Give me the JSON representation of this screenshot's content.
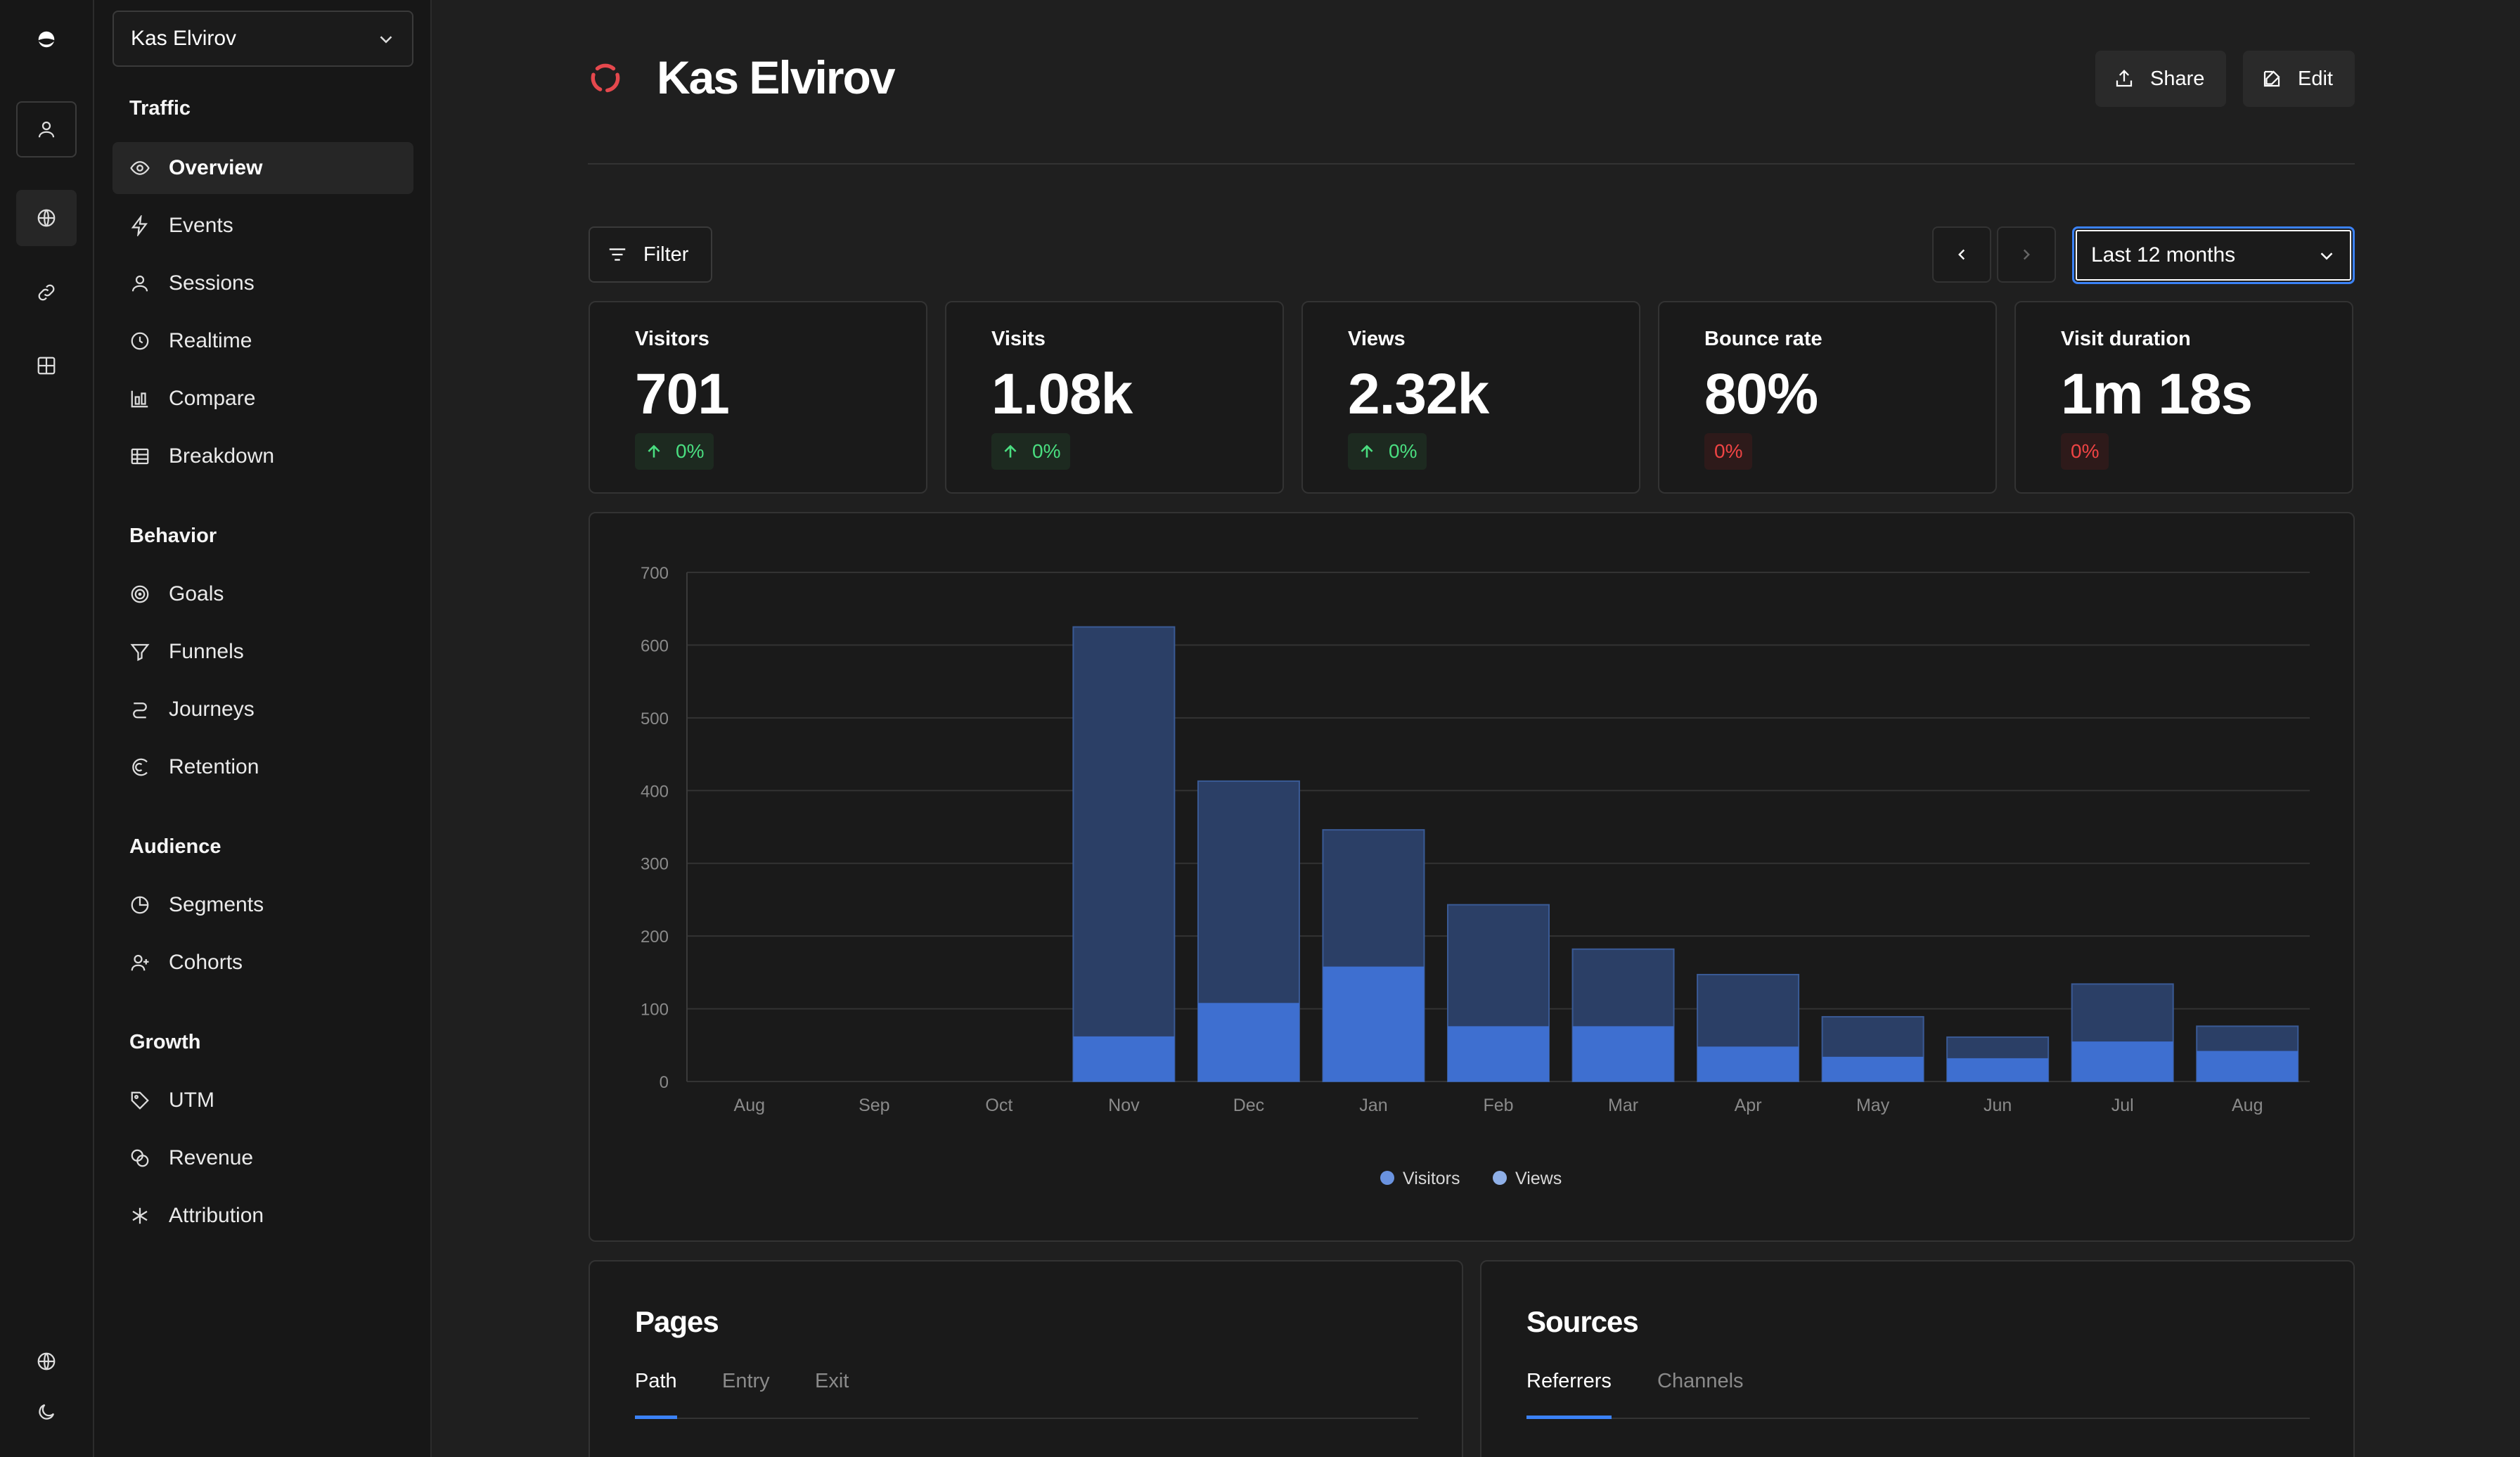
{
  "site": {
    "name": "Kas Elvirov"
  },
  "header": {
    "title": "Kas Elvirov",
    "share_label": "Share",
    "edit_label": "Edit"
  },
  "toolbar": {
    "filter_label": "Filter",
    "date_range": "Last 12 months"
  },
  "sidebar": {
    "sections": [
      {
        "title": "Traffic",
        "items": [
          "Overview",
          "Events",
          "Sessions",
          "Realtime",
          "Compare",
          "Breakdown"
        ]
      },
      {
        "title": "Behavior",
        "items": [
          "Goals",
          "Funnels",
          "Journeys",
          "Retention"
        ]
      },
      {
        "title": "Audience",
        "items": [
          "Segments",
          "Cohorts"
        ]
      },
      {
        "title": "Growth",
        "items": [
          "UTM",
          "Revenue",
          "Attribution"
        ]
      }
    ],
    "active_item": "Overview"
  },
  "icons": {
    "rail": [
      "logo-icon",
      "user-icon",
      "globe-icon",
      "link-icon",
      "grid-icon",
      "language-icon",
      "moon-icon"
    ]
  },
  "metrics": [
    {
      "label": "Visitors",
      "value": "701",
      "change": "0%",
      "trend": "up"
    },
    {
      "label": "Visits",
      "value": "1.08k",
      "change": "0%",
      "trend": "up"
    },
    {
      "label": "Views",
      "value": "2.32k",
      "change": "0%",
      "trend": "up"
    },
    {
      "label": "Bounce rate",
      "value": "80%",
      "change": "0%",
      "trend": "negative"
    },
    {
      "label": "Visit duration",
      "value": "1m 18s",
      "change": "0%",
      "trend": "negative"
    }
  ],
  "chart_data": {
    "type": "bar",
    "stacked": "overlay",
    "categories": [
      "Aug",
      "Sep",
      "Oct",
      "Nov",
      "Dec",
      "Jan",
      "Feb",
      "Mar",
      "Apr",
      "May",
      "Jun",
      "Jul",
      "Aug"
    ],
    "series": [
      {
        "name": "Visitors",
        "values": [
          0,
          0,
          0,
          62,
          108,
          158,
          76,
          76,
          48,
          34,
          32,
          55,
          42
        ],
        "color": "#3e6fd0"
      },
      {
        "name": "Views",
        "values": [
          0,
          0,
          0,
          625,
          413,
          346,
          243,
          182,
          147,
          89,
          61,
          134,
          76
        ],
        "color": "#2b3f66"
      }
    ],
    "ylim": [
      0,
      700
    ],
    "yticks": [
      0,
      100,
      200,
      300,
      400,
      500,
      600,
      700
    ],
    "grid": true,
    "legend": "bottom-center"
  },
  "pages_panel": {
    "title": "Pages",
    "tabs": [
      "Path",
      "Entry",
      "Exit"
    ],
    "active_tab": "Path"
  },
  "sources_panel": {
    "title": "Sources",
    "tabs": [
      "Referrers",
      "Channels"
    ],
    "active_tab": "Referrers"
  },
  "colors": {
    "accent": "#3b82f6",
    "positive": "#4ade80",
    "negative": "#ef4444",
    "background": "#1f1f1f"
  }
}
